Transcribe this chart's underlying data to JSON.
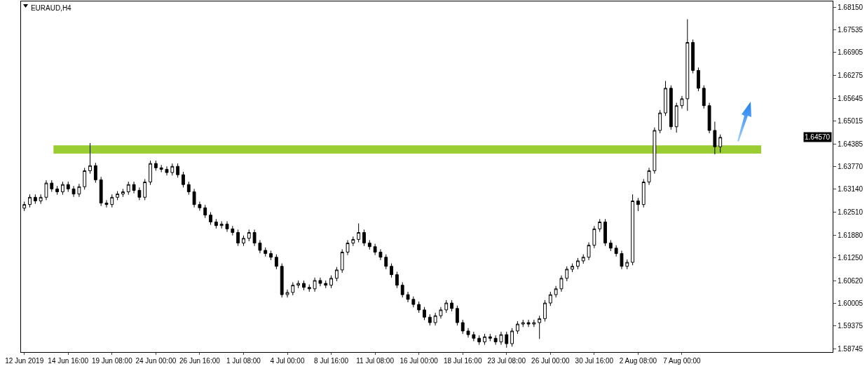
{
  "chart_data": {
    "type": "candlestick",
    "title": "EURAUD,H4",
    "categories": [
      "12 Jun 2019",
      null,
      null,
      null,
      null,
      null,
      null,
      null,
      "14 Jun 16:00",
      null,
      null,
      null,
      null,
      null,
      null,
      null,
      "19 Jun 08:00",
      null,
      null,
      null,
      null,
      null,
      null,
      null,
      "24 Jun 00:00",
      null,
      null,
      null,
      null,
      null,
      null,
      null,
      "26 Jun 16:00",
      null,
      null,
      null,
      null,
      null,
      null,
      null,
      "1 Jul 08:00",
      null,
      null,
      null,
      null,
      null,
      null,
      null,
      "4 Jul 00:00",
      null,
      null,
      null,
      null,
      null,
      null,
      null,
      "8 Jul 16:00",
      null,
      null,
      null,
      null,
      null,
      null,
      null,
      "11 Jul 08:00",
      null,
      null,
      null,
      null,
      null,
      null,
      null,
      "16 Jul 00:00",
      null,
      null,
      null,
      null,
      null,
      null,
      null,
      "18 Jul 16:00",
      null,
      null,
      null,
      null,
      null,
      null,
      null,
      "23 Jul 08:00",
      null,
      null,
      null,
      null,
      null,
      null,
      null,
      "26 Jul 00:00",
      null,
      null,
      null,
      null,
      null,
      null,
      null,
      "30 Jul 16:00",
      null,
      null,
      null,
      null,
      null,
      null,
      null,
      "2 Aug 08:00",
      null,
      null,
      null,
      null,
      null,
      null,
      null,
      "7 Aug 00:00",
      null,
      null,
      null,
      null,
      null,
      null,
      null,
      null,
      null,
      null,
      null,
      null,
      null,
      null,
      null,
      null,
      null,
      null,
      null,
      null,
      null,
      null,
      null,
      null,
      null,
      null,
      null
    ],
    "ohlc": [
      [
        1.6262,
        1.628,
        1.6254,
        1.6272
      ],
      [
        1.6272,
        1.63,
        1.6264,
        1.6292
      ],
      [
        1.6292,
        1.63,
        1.6274,
        1.6282
      ],
      [
        1.6282,
        1.63,
        1.6274,
        1.6292
      ],
      [
        1.6292,
        1.6339,
        1.6284,
        1.6331
      ],
      [
        1.6331,
        1.6339,
        1.6307,
        1.6315
      ],
      [
        1.6315,
        1.6323,
        1.6299,
        1.6307
      ],
      [
        1.6307,
        1.6335,
        1.6299,
        1.6327
      ],
      [
        1.6327,
        1.6335,
        1.6307,
        1.6315
      ],
      [
        1.6315,
        1.6323,
        1.6293,
        1.6301
      ],
      [
        1.6301,
        1.6329,
        1.6293,
        1.6321
      ],
      [
        1.6321,
        1.6373,
        1.6313,
        1.6365
      ],
      [
        1.6365,
        1.6441,
        1.6357,
        1.6379
      ],
      [
        1.6379,
        1.6387,
        1.6332,
        1.634
      ],
      [
        1.634,
        1.6348,
        1.6268,
        1.6276
      ],
      [
        1.6276,
        1.6284,
        1.6264,
        1.6272
      ],
      [
        1.6272,
        1.63,
        1.6264,
        1.6292
      ],
      [
        1.6292,
        1.6309,
        1.6284,
        1.6301
      ],
      [
        1.6301,
        1.6315,
        1.6293,
        1.6307
      ],
      [
        1.6307,
        1.6335,
        1.6299,
        1.6327
      ],
      [
        1.6327,
        1.6335,
        1.6303,
        1.6311
      ],
      [
        1.6311,
        1.6319,
        1.6284,
        1.6292
      ],
      [
        1.6292,
        1.6342,
        1.6284,
        1.6334
      ],
      [
        1.6334,
        1.6393,
        1.6326,
        1.6385
      ],
      [
        1.6385,
        1.6393,
        1.6365,
        1.6373
      ],
      [
        1.6373,
        1.6381,
        1.6361,
        1.6369
      ],
      [
        1.6369,
        1.6377,
        1.6352,
        1.636
      ],
      [
        1.636,
        1.6385,
        1.6352,
        1.6377
      ],
      [
        1.6377,
        1.6385,
        1.6346,
        1.6354
      ],
      [
        1.6354,
        1.6362,
        1.6319,
        1.6327
      ],
      [
        1.6327,
        1.6335,
        1.6299,
        1.6307
      ],
      [
        1.6307,
        1.6315,
        1.6264,
        1.6272
      ],
      [
        1.6272,
        1.628,
        1.6255,
        1.6263
      ],
      [
        1.6263,
        1.6271,
        1.6235,
        1.6243
      ],
      [
        1.6243,
        1.6251,
        1.6216,
        1.6224
      ],
      [
        1.6224,
        1.6232,
        1.6206,
        1.6214
      ],
      [
        1.6214,
        1.6226,
        1.6206,
        1.6218
      ],
      [
        1.6218,
        1.6226,
        1.6197,
        1.6205
      ],
      [
        1.6205,
        1.6213,
        1.6187,
        1.6195
      ],
      [
        1.6195,
        1.6203,
        1.6158,
        1.6166
      ],
      [
        1.6166,
        1.6187,
        1.6158,
        1.6179
      ],
      [
        1.6179,
        1.6203,
        1.6171,
        1.6195
      ],
      [
        1.6195,
        1.6203,
        1.6158,
        1.6166
      ],
      [
        1.6166,
        1.6174,
        1.6138,
        1.6146
      ],
      [
        1.6146,
        1.6154,
        1.6129,
        1.6137
      ],
      [
        1.6137,
        1.6145,
        1.6119,
        1.6127
      ],
      [
        1.6127,
        1.6135,
        1.6094,
        1.6102
      ],
      [
        1.6102,
        1.611,
        1.6016,
        1.6024
      ],
      [
        1.6024,
        1.6038,
        1.6016,
        1.603
      ],
      [
        1.603,
        1.6058,
        1.6022,
        1.605
      ],
      [
        1.605,
        1.6063,
        1.6042,
        1.6055
      ],
      [
        1.6055,
        1.6063,
        1.6036,
        1.6044
      ],
      [
        1.6044,
        1.6052,
        1.6032,
        1.604
      ],
      [
        1.604,
        1.6071,
        1.6032,
        1.6063
      ],
      [
        1.6063,
        1.6071,
        1.6047,
        1.6055
      ],
      [
        1.6055,
        1.6063,
        1.6042,
        1.605
      ],
      [
        1.605,
        1.6077,
        1.6042,
        1.6069
      ],
      [
        1.6069,
        1.61,
        1.6061,
        1.6092
      ],
      [
        1.6092,
        1.6149,
        1.6084,
        1.6141
      ],
      [
        1.6141,
        1.6174,
        1.6133,
        1.6166
      ],
      [
        1.6166,
        1.6184,
        1.6158,
        1.6176
      ],
      [
        1.6176,
        1.622,
        1.6168,
        1.6195
      ],
      [
        1.6195,
        1.6203,
        1.6158,
        1.6166
      ],
      [
        1.6166,
        1.6174,
        1.6148,
        1.6156
      ],
      [
        1.6156,
        1.6164,
        1.6133,
        1.6141
      ],
      [
        1.6141,
        1.6149,
        1.6119,
        1.6127
      ],
      [
        1.6127,
        1.6135,
        1.6094,
        1.6102
      ],
      [
        1.6102,
        1.611,
        1.6071,
        1.6079
      ],
      [
        1.6079,
        1.6087,
        1.6042,
        1.605
      ],
      [
        1.605,
        1.6058,
        1.6016,
        1.6024
      ],
      [
        1.6024,
        1.6032,
        1.6003,
        1.6011
      ],
      [
        1.6011,
        1.6019,
        1.5989,
        1.5997
      ],
      [
        1.5997,
        1.6005,
        1.5974,
        1.5982
      ],
      [
        1.5982,
        1.599,
        1.5954,
        1.5962
      ],
      [
        1.5962,
        1.597,
        1.5939,
        1.5947
      ],
      [
        1.5947,
        1.5974,
        1.5939,
        1.5966
      ],
      [
        1.5966,
        1.599,
        1.5958,
        1.5982
      ],
      [
        1.5982,
        1.6009,
        1.5974,
        1.6001
      ],
      [
        1.6001,
        1.6009,
        1.5978,
        1.5986
      ],
      [
        1.5986,
        1.5994,
        1.5939,
        1.5947
      ],
      [
        1.5947,
        1.5955,
        1.5916,
        1.5924
      ],
      [
        1.5924,
        1.5932,
        1.5906,
        1.5914
      ],
      [
        1.5914,
        1.5922,
        1.5896,
        1.5904
      ],
      [
        1.5904,
        1.5912,
        1.5886,
        1.5894
      ],
      [
        1.5894,
        1.5916,
        1.5886,
        1.5908
      ],
      [
        1.5908,
        1.5916,
        1.5896,
        1.5904
      ],
      [
        1.5904,
        1.5912,
        1.5886,
        1.5894
      ],
      [
        1.5894,
        1.5922,
        1.5886,
        1.5914
      ],
      [
        1.5914,
        1.5922,
        1.5878,
        1.5889
      ],
      [
        1.5889,
        1.5932,
        1.5881,
        1.5924
      ],
      [
        1.5924,
        1.5951,
        1.5916,
        1.5943
      ],
      [
        1.5943,
        1.5955,
        1.5935,
        1.5947
      ],
      [
        1.5947,
        1.5955,
        1.5935,
        1.5943
      ],
      [
        1.5943,
        1.5955,
        1.5935,
        1.5947
      ],
      [
        1.5947,
        1.5966,
        1.5902,
        1.5958
      ],
      [
        1.5958,
        1.6009,
        1.595,
        1.6001
      ],
      [
        1.6001,
        1.6032,
        1.5993,
        1.6024
      ],
      [
        1.6024,
        1.6048,
        1.6016,
        1.604
      ],
      [
        1.604,
        1.6077,
        1.6032,
        1.6069
      ],
      [
        1.6069,
        1.6102,
        1.6061,
        1.6094
      ],
      [
        1.6094,
        1.611,
        1.6086,
        1.6102
      ],
      [
        1.6102,
        1.6125,
        1.6094,
        1.6117
      ],
      [
        1.6117,
        1.6135,
        1.6109,
        1.6127
      ],
      [
        1.6127,
        1.6168,
        1.6119,
        1.616
      ],
      [
        1.616,
        1.6213,
        1.6152,
        1.6205
      ],
      [
        1.6205,
        1.6232,
        1.6197,
        1.6224
      ],
      [
        1.6224,
        1.6232,
        1.6158,
        1.6166
      ],
      [
        1.6166,
        1.6174,
        1.6144,
        1.6152
      ],
      [
        1.6152,
        1.616,
        1.6129,
        1.6137
      ],
      [
        1.6137,
        1.6145,
        1.6094,
        1.6102
      ],
      [
        1.6102,
        1.6121,
        1.6094,
        1.6113
      ],
      [
        1.6113,
        1.63,
        1.6105,
        1.6282
      ],
      [
        1.6282,
        1.629,
        1.6254,
        1.6272
      ],
      [
        1.6272,
        1.6342,
        1.6264,
        1.6334
      ],
      [
        1.6334,
        1.6373,
        1.6326,
        1.6365
      ],
      [
        1.6365,
        1.6484,
        1.6357,
        1.6476
      ],
      [
        1.6476,
        1.6532,
        1.6468,
        1.6524
      ],
      [
        1.6524,
        1.6612,
        1.6516,
        1.6592
      ],
      [
        1.6592,
        1.66,
        1.6478,
        1.6486
      ],
      [
        1.6486,
        1.6552,
        1.647,
        1.6544
      ],
      [
        1.6544,
        1.6571,
        1.6536,
        1.6563
      ],
      [
        1.6563,
        1.6782,
        1.653,
        1.6718
      ],
      [
        1.6718,
        1.6726,
        1.6633,
        1.6641
      ],
      [
        1.6641,
        1.6649,
        1.6584,
        1.6592
      ],
      [
        1.6592,
        1.66,
        1.6536,
        1.6544
      ],
      [
        1.6544,
        1.6552,
        1.6468,
        1.6476
      ],
      [
        1.6476,
        1.65,
        1.641,
        1.6431
      ],
      [
        1.6431,
        1.6465,
        1.6415,
        1.6457
      ],
      null,
      null,
      null,
      null,
      null,
      null,
      null,
      null,
      null,
      null,
      null,
      null,
      null,
      null,
      null,
      null,
      null,
      null,
      null,
      null
    ],
    "ylim": [
      1.5866,
      1.6831
    ],
    "yticks": [
      {
        "value": 1.58745,
        "label": "1.58745"
      },
      {
        "value": 1.59375,
        "label": "1.59375"
      },
      {
        "value": 1.60005,
        "label": "1.60005"
      },
      {
        "value": 1.6062,
        "label": "1.60620"
      },
      {
        "value": 1.6125,
        "label": "1.61250"
      },
      {
        "value": 1.6188,
        "label": "1.61880"
      },
      {
        "value": 1.6251,
        "label": "1.62510"
      },
      {
        "value": 1.6314,
        "label": "1.63140"
      },
      {
        "value": 1.6377,
        "label": "1.63770"
      },
      {
        "value": 1.64385,
        "label": "1.64385"
      },
      {
        "value": 1.65015,
        "label": "1.65015"
      },
      {
        "value": 1.65645,
        "label": "1.65645"
      },
      {
        "value": 1.66275,
        "label": "1.66275"
      },
      {
        "value": 1.66905,
        "label": "1.66905"
      },
      {
        "value": 1.67535,
        "label": "1.67535"
      },
      {
        "value": 1.6815,
        "label": "1.68150"
      }
    ],
    "bands": [
      {
        "axis": "y",
        "from": 1.6412,
        "to": 1.6435,
        "color": "#9acd32"
      }
    ],
    "annotations": [
      {
        "text": "1.64570",
        "y": 1.6457
      }
    ]
  }
}
